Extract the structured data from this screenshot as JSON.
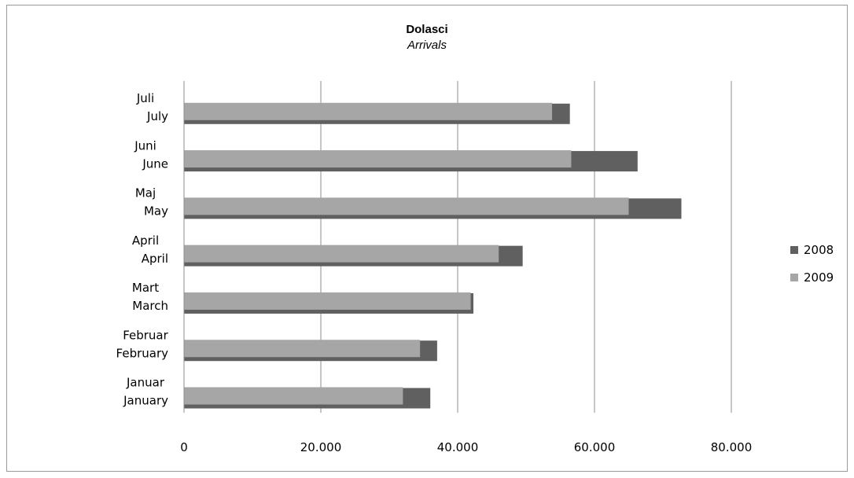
{
  "chart_data": {
    "type": "bar",
    "orientation": "horizontal",
    "title": "Dolasci",
    "subtitle": "Arrivals",
    "categories": [
      [
        "Januar",
        "January"
      ],
      [
        "Februar",
        "February"
      ],
      [
        "Mart",
        "March"
      ],
      [
        "April",
        "April"
      ],
      [
        "Maj",
        "May"
      ],
      [
        "Juni",
        "June"
      ],
      [
        "Juli",
        "July"
      ]
    ],
    "series": [
      {
        "name": "2008",
        "color": "#606060",
        "values": [
          36000,
          37000,
          42300,
          49500,
          72700,
          66300,
          56400
        ]
      },
      {
        "name": "2009",
        "color": "#a6a6a6",
        "values": [
          32000,
          34500,
          41900,
          46000,
          65000,
          56600,
          53800
        ]
      }
    ],
    "xlim": [
      0,
      80000
    ],
    "xticks": [
      0,
      20000,
      40000,
      60000,
      80000
    ],
    "xtick_labels": [
      "0",
      "20.000",
      "40.000",
      "60.000",
      "80.000"
    ],
    "grid": "vertical",
    "legend_position": "right"
  }
}
